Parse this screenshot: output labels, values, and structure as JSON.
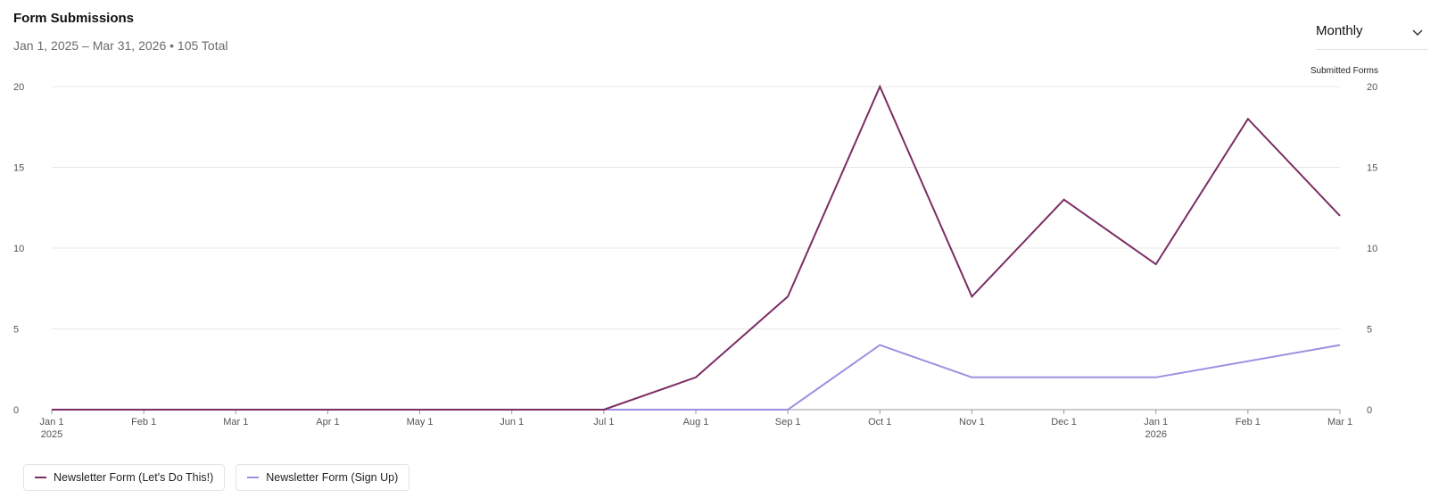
{
  "header": {
    "title": "Form Submissions",
    "subtitle": "Jan 1, 2025 – Mar 31, 2026 • 105 Total"
  },
  "period_select": {
    "selected": "Monthly"
  },
  "chart_data": {
    "type": "line",
    "x": [
      "Jan 1",
      "Feb 1",
      "Mar 1",
      "Apr 1",
      "May 1",
      "Jun 1",
      "Jul 1",
      "Aug 1",
      "Sep 1",
      "Oct 1",
      "Nov 1",
      "Dec 1",
      "Jan 1",
      "Feb 1",
      "Mar 1"
    ],
    "x_year_labels": [
      {
        "index": 0,
        "label": "2025"
      },
      {
        "index": 12,
        "label": "2026"
      }
    ],
    "series": [
      {
        "name": "Newsletter Form (Let's Do This!)",
        "color": "#7b2d63",
        "values": [
          0,
          0,
          0,
          0,
          0,
          0,
          0,
          2,
          7,
          20,
          7,
          13,
          9,
          18,
          12
        ]
      },
      {
        "name": "Newsletter Form (Sign Up)",
        "color": "#9d8fe0",
        "values": [
          0,
          0,
          0,
          0,
          0,
          0,
          0,
          0,
          0,
          4,
          2,
          2,
          2,
          3,
          4
        ]
      }
    ],
    "yticks": [
      0,
      5,
      10,
      15,
      20
    ],
    "ylim": [
      0,
      20
    ],
    "right_axis_label": "Submitted Forms",
    "grid": true,
    "legend_position": "bottom-left"
  }
}
